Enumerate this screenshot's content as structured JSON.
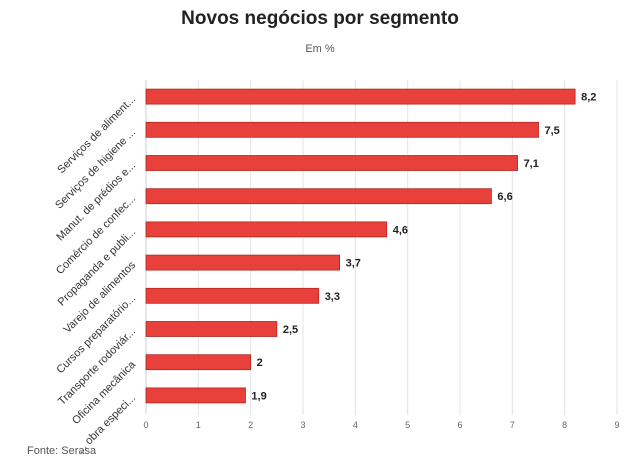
{
  "chart_data": {
    "type": "bar",
    "orientation": "horizontal",
    "title": "Novos negócios por segmento",
    "subtitle": "Em %",
    "categories": [
      "Serviços de aliment...",
      "Serviços de higiene ...",
      "Manut. de prédios e...",
      "Comércio de confec...",
      "Propaganda e publi...",
      "Varejo de alimentos",
      "Cursos preparatório...",
      "Transporte rodoviár...",
      "Oficina mecânica",
      "... obra especi..."
    ],
    "values": [
      8.2,
      7.5,
      7.1,
      6.6,
      4.6,
      3.7,
      3.3,
      2.5,
      2,
      1.9
    ],
    "value_labels": [
      "8,2",
      "7,5",
      "7,1",
      "6,6",
      "4,6",
      "3,7",
      "3,3",
      "2,5",
      "2",
      "1,9"
    ],
    "xlim": [
      0,
      9
    ],
    "x_ticks": [
      0,
      1,
      2,
      3,
      4,
      5,
      6,
      7,
      8,
      9
    ],
    "grid": true,
    "bar_color": "#e8403b",
    "source": "Fonte: Serasa"
  }
}
